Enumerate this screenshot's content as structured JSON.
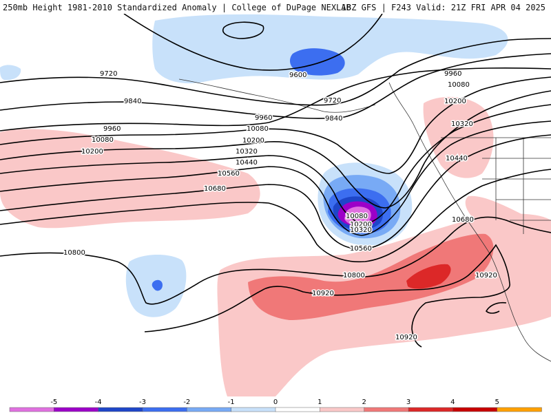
{
  "header": {
    "left_title": "250mb Height 1981-2010 Standardized Anomaly | College of DuPage NEXLAB",
    "right_title": "18Z GFS | F243 Valid: 21Z FRI APR 04 2025"
  },
  "contour_labels": [
    "9600",
    "9720",
    "9720",
    "9840",
    "9840",
    "9960",
    "9960",
    "9960",
    "10080",
    "10080",
    "10080",
    "10080",
    "10200",
    "10200",
    "10200",
    "10200",
    "10320",
    "10320",
    "10320",
    "10440",
    "10440",
    "10560",
    "10560",
    "10680",
    "10680",
    "10800",
    "10800",
    "10920",
    "10920",
    "10920"
  ],
  "colorbar": {
    "tick_labels": [
      "-5",
      "-4",
      "-3",
      "-2",
      "-1",
      "0",
      "1",
      "2",
      "3",
      "4",
      "5"
    ],
    "bin_colors": [
      "#e070e0",
      "#9c00c8",
      "#1e46c8",
      "#3c6ef0",
      "#78aaf5",
      "#c8e1fa",
      "#ffffff",
      "#fac8c8",
      "#f07878",
      "#dc2828",
      "#c80000",
      "#ffa000"
    ]
  }
}
